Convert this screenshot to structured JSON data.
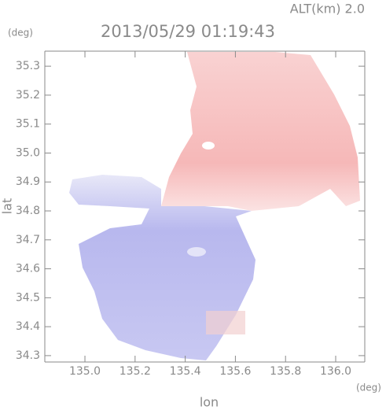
{
  "chart_data": {
    "type": "map",
    "title": "2013/05/29 01:19:43",
    "annotation": "ALT(km) 2.0",
    "x_label": "lon",
    "y_label": "lat",
    "x_unit": "(deg)",
    "y_unit": "(deg)",
    "xlim": [
      134.84,
      136.116
    ],
    "ylim": [
      34.278,
      35.352
    ],
    "xticks": [
      {
        "value": 135,
        "label": "135.0"
      },
      135.2,
      135.4,
      135.6,
      135.8,
      {
        "value": 136,
        "label": "136.0"
      }
    ],
    "yticks": [
      34.3,
      34.4,
      34.5,
      34.6,
      34.7,
      34.8,
      34.9,
      {
        "value": 35,
        "label": "35.0"
      },
      35.1,
      35.2,
      35.3
    ]
  }
}
